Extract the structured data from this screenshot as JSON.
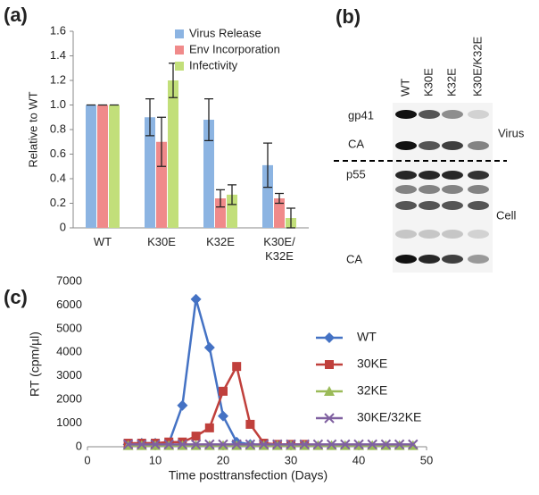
{
  "panel_labels": [
    "(a)",
    "(b)",
    "(c)"
  ],
  "chart_data": [
    {
      "type": "bar",
      "y_label": "Relative to WT",
      "categories": [
        "WT",
        "K30E",
        "K32E",
        "K30E/\nK32E"
      ],
      "series": [
        {
          "name": "Virus Release",
          "color": "#8cb4e2",
          "values": [
            1.0,
            0.9,
            0.88,
            0.51
          ],
          "errors": [
            0,
            0.15,
            0.17,
            0.18
          ]
        },
        {
          "name": "Env Incorporation",
          "color": "#f08a8a",
          "values": [
            1.0,
            0.7,
            0.24,
            0.24
          ],
          "errors": [
            0,
            0.2,
            0.07,
            0.04
          ]
        },
        {
          "name": "Infectivity",
          "color": "#c2df7a",
          "values": [
            1.0,
            1.2,
            0.27,
            0.08
          ],
          "errors": [
            0,
            0.14,
            0.08,
            0.08
          ]
        }
      ],
      "ylim": [
        0,
        1.6
      ],
      "yticks": [
        0,
        0.2,
        0.4,
        0.6,
        0.8,
        {
          "value": 1,
          "label": "1.0"
        },
        1.2,
        1.4,
        1.6
      ],
      "grid": false,
      "legend": "top-right"
    },
    {
      "type": "line",
      "x_label": "Time posttransfection (Days)",
      "y_label": "RT (cpm/µl)",
      "x": [
        6,
        8,
        10,
        12,
        14,
        16,
        18,
        20,
        22,
        24,
        26,
        28,
        30,
        32,
        34,
        36,
        38,
        40,
        42,
        44,
        46,
        48
      ],
      "series": [
        {
          "name": "WT",
          "color": "#4472c4",
          "marker": "diamond",
          "values": [
            100,
            150,
            150,
            150,
            1750,
            6250,
            4200,
            1300,
            200,
            100,
            null,
            null,
            null,
            null,
            null,
            null,
            null,
            null,
            null,
            null,
            null,
            null
          ]
        },
        {
          "name": "30KE",
          "color": "#c0403c",
          "marker": "square",
          "values": [
            150,
            150,
            150,
            200,
            200,
            450,
            800,
            2350,
            3400,
            950,
            150,
            100,
            100,
            100,
            null,
            null,
            null,
            null,
            null,
            null,
            null,
            null
          ]
        },
        {
          "name": "32KE",
          "color": "#9bbb59",
          "marker": "triangle",
          "values": [
            50,
            50,
            50,
            50,
            50,
            50,
            50,
            50,
            50,
            50,
            50,
            50,
            50,
            50,
            50,
            50,
            50,
            50,
            50,
            50,
            50,
            50
          ]
        },
        {
          "name": "30KE/32KE",
          "color": "#7f60a0",
          "marker": "x",
          "values": [
            100,
            100,
            100,
            100,
            100,
            100,
            100,
            100,
            100,
            100,
            100,
            100,
            100,
            100,
            100,
            100,
            100,
            100,
            100,
            100,
            100,
            100
          ]
        }
      ],
      "xlim": [
        0,
        50
      ],
      "xticks": [
        0,
        10,
        20,
        30,
        40,
        50
      ],
      "ylim": [
        0,
        7000
      ],
      "yticks": [
        0,
        1000,
        2000,
        3000,
        4000,
        5000,
        6000,
        7000
      ],
      "grid": false,
      "legend": "right"
    }
  ],
  "blot": {
    "lanes": [
      "WT",
      "K30E",
      "K32E",
      "K30E/K32E"
    ],
    "bands": [
      "gp41",
      "CA",
      "p55",
      "CA"
    ],
    "groups": [
      "Virus",
      "Cell"
    ]
  }
}
